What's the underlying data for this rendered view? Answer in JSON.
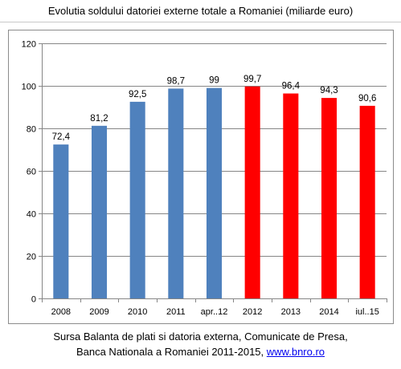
{
  "header": {
    "title": "Evolutia soldului datoriei externe totale a Romaniei (miliarde euro)"
  },
  "footer": {
    "line1": "Sursa Balanta de plati si datoria externa, Comunicate de Presa,",
    "line2_text": "Banca Nationala a Romaniei 2011-2015,",
    "line2_link": "www.bnro.ro"
  },
  "chart_data": {
    "type": "bar",
    "title": "Evolutia soldului datoriei externe totale a Romaniei (miliarde euro)",
    "categories": [
      "2008",
      "2009",
      "2010",
      "2011",
      "apr..12",
      "2012",
      "2013",
      "2014",
      "iul..15"
    ],
    "values": [
      72.4,
      81.2,
      92.5,
      98.7,
      99,
      99.7,
      96.4,
      94.3,
      90.6
    ],
    "value_labels": [
      "72,4",
      "81,2",
      "92,5",
      "98,7",
      "99",
      "99,7",
      "96,4",
      "94,3",
      "90,6"
    ],
    "bar_colors": [
      "#4f81bd",
      "#4f81bd",
      "#4f81bd",
      "#4f81bd",
      "#4f81bd",
      "#ff0000",
      "#ff0000",
      "#ff0000",
      "#ff0000"
    ],
    "ylim": [
      0,
      120
    ],
    "yticks": [
      0,
      20,
      40,
      60,
      80,
      100,
      120
    ],
    "grid": true,
    "legend": false,
    "xlabel": "",
    "ylabel": ""
  }
}
